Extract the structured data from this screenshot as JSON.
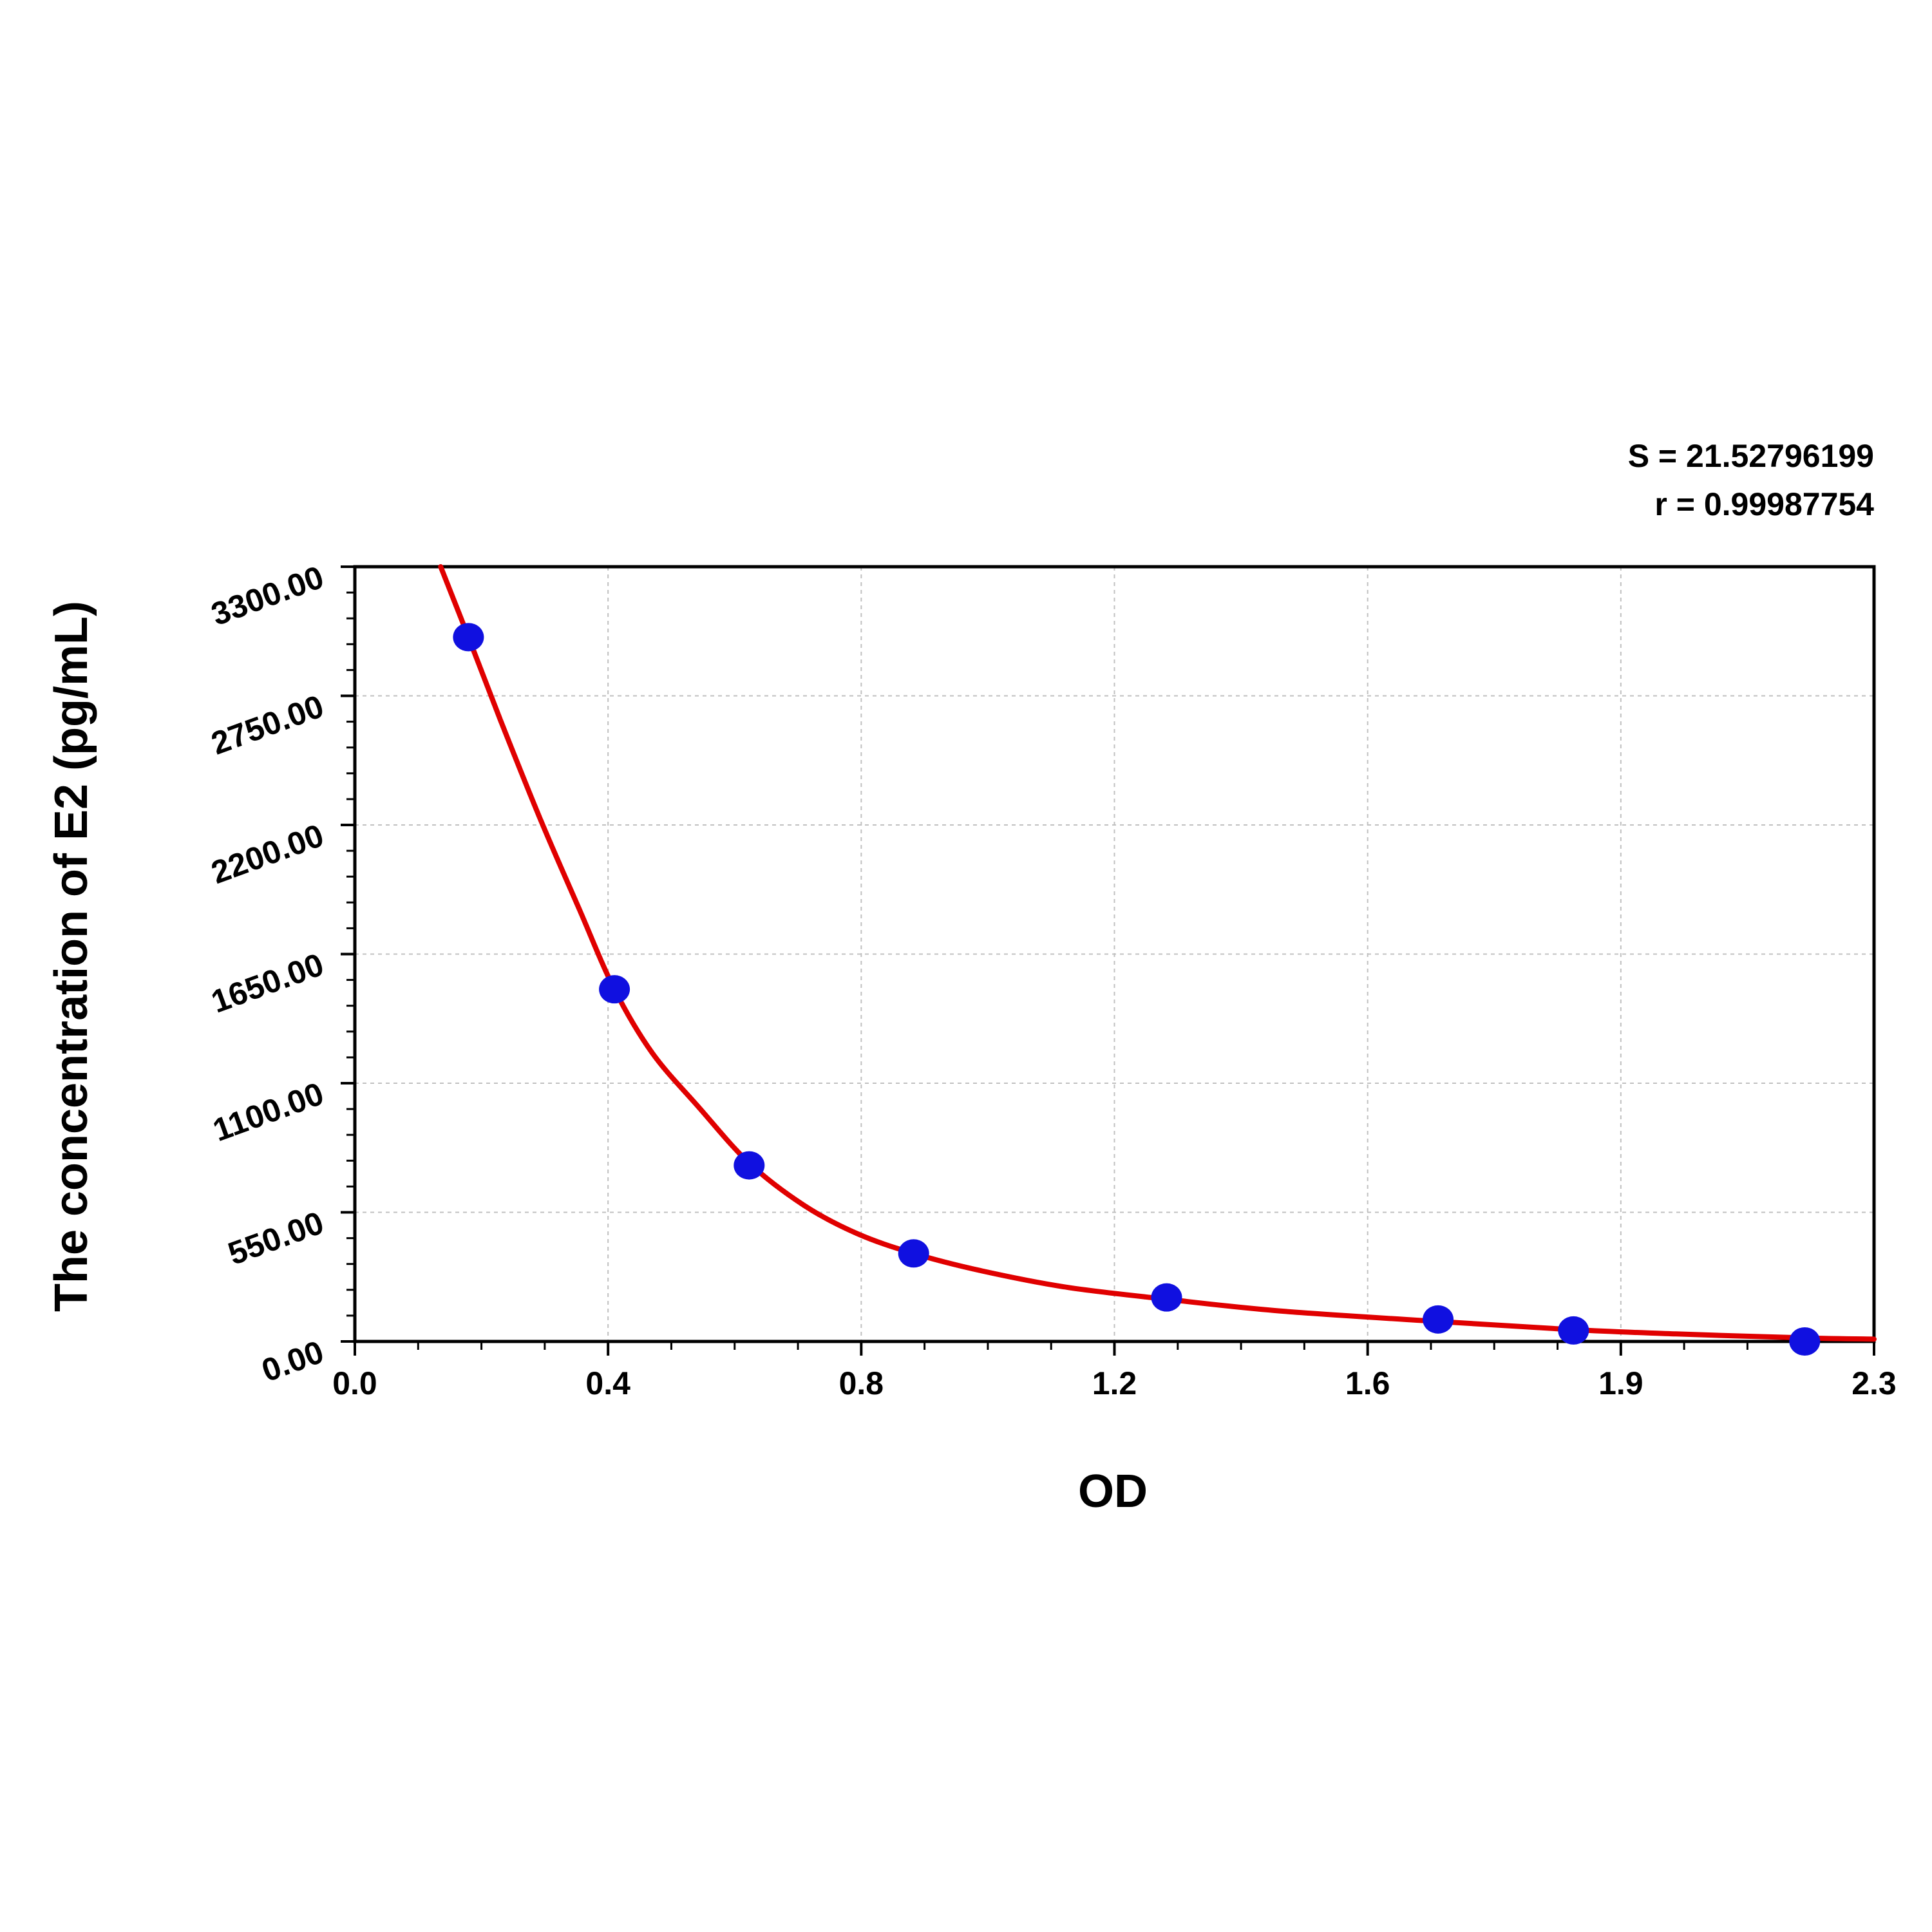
{
  "chart_data": {
    "type": "scatter",
    "xlabel": "OD",
    "ylabel": "The concentration of E2 (pg/mL)",
    "xlim": [
      0,
      2.3
    ],
    "ylim": [
      0,
      3300
    ],
    "x_ticks": [
      "0.0",
      "0.4",
      "0.8",
      "1.2",
      "1.6",
      "1.9",
      "2.3"
    ],
    "y_ticks": [
      "0.00",
      "550.00",
      "1100.00",
      "1650.00",
      "2200.00",
      "2750.00",
      "3300.00"
    ],
    "grid": true,
    "stats": {
      "s": "S = 21.52796199",
      "r": "r = 0.99987754"
    },
    "points": [
      {
        "x": 0.172,
        "y": 3000
      },
      {
        "x": 0.393,
        "y": 1500
      },
      {
        "x": 0.597,
        "y": 750
      },
      {
        "x": 0.846,
        "y": 375
      },
      {
        "x": 1.229,
        "y": 187.5
      },
      {
        "x": 1.64,
        "y": 93.75
      },
      {
        "x": 1.845,
        "y": 46.9
      },
      {
        "x": 2.195,
        "y": 0
      }
    ],
    "fit_curve": [
      {
        "x": 0.13,
        "y": 3300
      },
      {
        "x": 0.172,
        "y": 3000
      },
      {
        "x": 0.22,
        "y": 2650
      },
      {
        "x": 0.28,
        "y": 2230
      },
      {
        "x": 0.34,
        "y": 1840
      },
      {
        "x": 0.393,
        "y": 1500
      },
      {
        "x": 0.45,
        "y": 1230
      },
      {
        "x": 0.52,
        "y": 1000
      },
      {
        "x": 0.597,
        "y": 760
      },
      {
        "x": 0.68,
        "y": 580
      },
      {
        "x": 0.76,
        "y": 460
      },
      {
        "x": 0.846,
        "y": 375
      },
      {
        "x": 0.95,
        "y": 300
      },
      {
        "x": 1.08,
        "y": 230
      },
      {
        "x": 1.229,
        "y": 180
      },
      {
        "x": 1.4,
        "y": 130
      },
      {
        "x": 1.64,
        "y": 85
      },
      {
        "x": 1.845,
        "y": 50
      },
      {
        "x": 2.0,
        "y": 32
      },
      {
        "x": 2.195,
        "y": 15
      },
      {
        "x": 2.3,
        "y": 10
      }
    ],
    "colors": {
      "points": "#1010e0",
      "curve": "#e00000",
      "grid": "#c0c0c0",
      "axis": "#000000"
    }
  }
}
